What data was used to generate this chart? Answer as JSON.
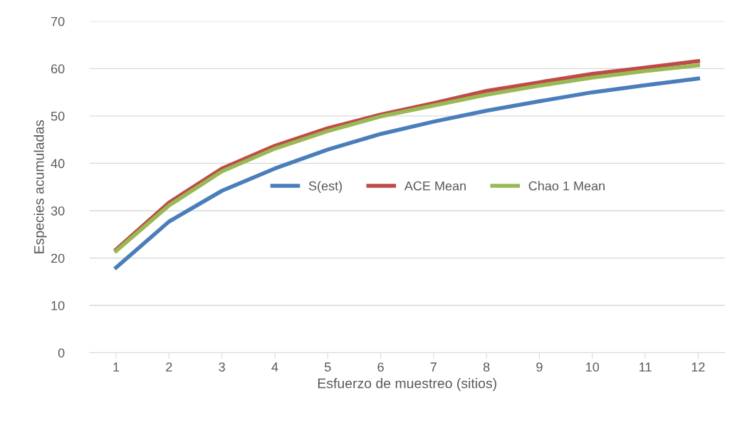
{
  "chart_data": {
    "type": "line",
    "xlabel": "Esfuerzo de muestreo (sitios)",
    "ylabel": "Especies acumuladas",
    "categories": [
      "1",
      "2",
      "3",
      "4",
      "5",
      "6",
      "7",
      "8",
      "9",
      "10",
      "11",
      "12"
    ],
    "series": [
      {
        "name": "S(est)",
        "color": "#4a7ebb",
        "values": [
          18.0,
          27.7,
          34.2,
          38.9,
          42.9,
          46.2,
          48.8,
          51.1,
          53.1,
          55.0,
          56.5,
          57.9
        ]
      },
      {
        "name": "ACE Mean",
        "color": "#be4b48",
        "values": [
          21.8,
          31.7,
          38.9,
          43.7,
          47.4,
          50.3,
          52.7,
          55.3,
          57.1,
          58.9,
          60.2,
          61.6
        ]
      },
      {
        "name": "Chao 1 Mean",
        "color": "#98b954",
        "values": [
          21.5,
          31.1,
          38.3,
          43.1,
          46.8,
          49.9,
          52.2,
          54.5,
          56.4,
          58.1,
          59.5,
          60.7
        ]
      }
    ],
    "ylim": [
      0,
      70
    ],
    "yticks": [
      0,
      10,
      20,
      30,
      40,
      50,
      60,
      70
    ],
    "grid": "y",
    "legend": "center",
    "marker": "none",
    "line_style": "solid"
  }
}
